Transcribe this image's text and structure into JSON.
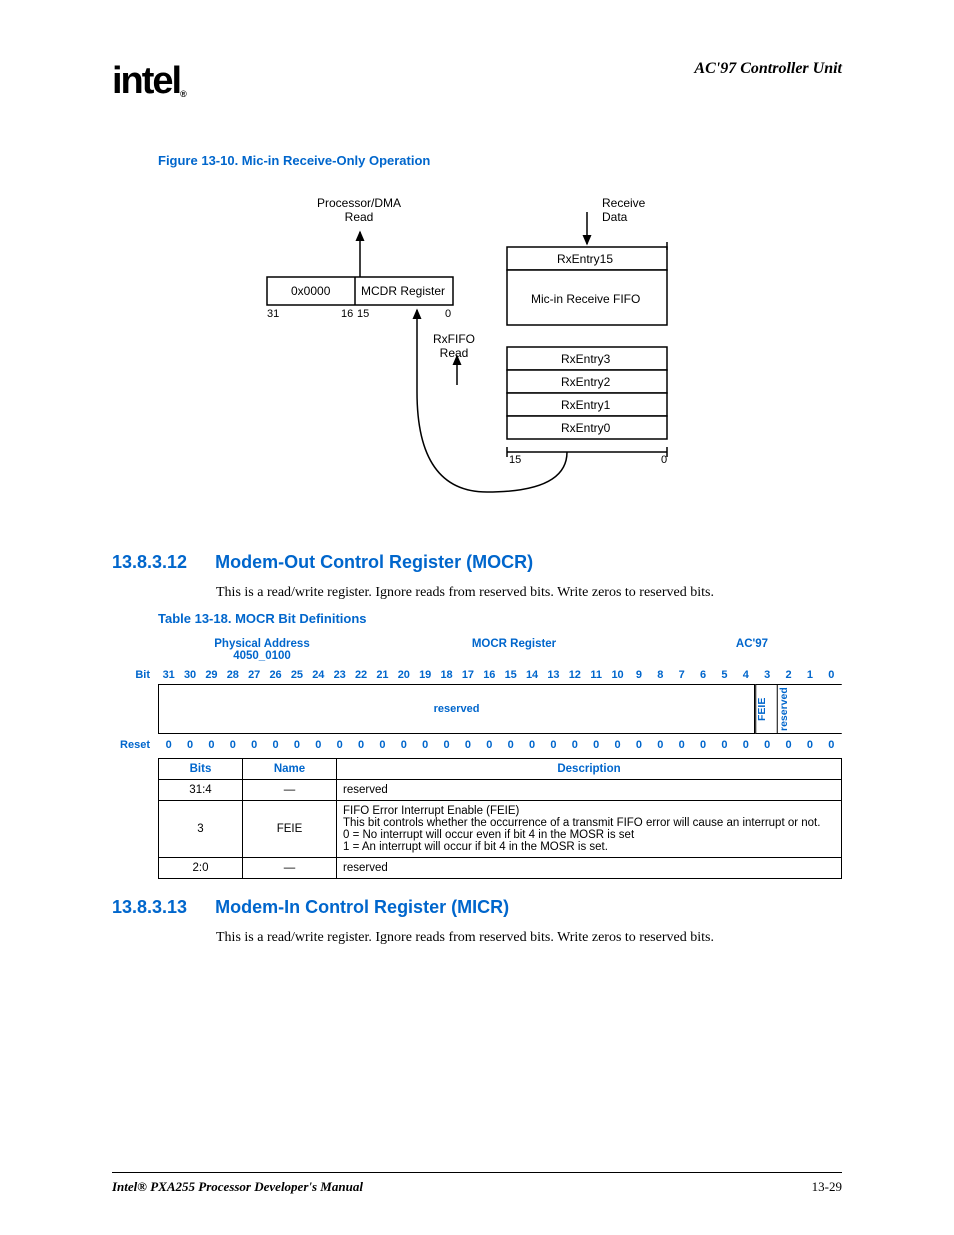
{
  "header": {
    "logo_text": "intel",
    "reg_mark": "®",
    "section_title": "AC'97 Controller Unit"
  },
  "figure": {
    "caption": "Figure 13-10. Mic-in Receive-Only Operation",
    "labels": {
      "proc_dma": "Processor/DMA",
      "read": "Read",
      "receive": "Receive",
      "data": "Data",
      "zero_pad": "0x0000",
      "mcdr": "MCDR Register",
      "bit31": "31",
      "bit16": "16",
      "bit15_a": "15",
      "bit0_a": "0",
      "rxfifo": "RxFIFO",
      "rxfifo_read": "Read",
      "rx15": "RxEntry15",
      "micfifo": "Mic-in Receive FIFO",
      "rx3": "RxEntry3",
      "rx2": "RxEntry2",
      "rx1": "RxEntry1",
      "rx0": "RxEntry0",
      "bit15_b": "15",
      "bit0_b": "0"
    },
    "colors": {
      "stroke": "#000000",
      "fill": "#ffffff"
    }
  },
  "sec1": {
    "num": "13.8.3.12",
    "title": "Modem-Out Control Register (MOCR)",
    "body": "This is a read/write register. Ignore reads from reserved bits. Write zeros to reserved bits."
  },
  "table": {
    "caption": "Table 13-18. MOCR Bit Definitions",
    "phys_addr_label": "Physical Address",
    "phys_addr_val": "4050_0100",
    "reg_name": "MOCR Register",
    "ac97": "AC'97",
    "bit_label": "Bit",
    "reset_label": "Reset",
    "bits": [
      "31",
      "30",
      "29",
      "28",
      "27",
      "26",
      "25",
      "24",
      "23",
      "22",
      "21",
      "20",
      "19",
      "18",
      "17",
      "16",
      "15",
      "14",
      "13",
      "12",
      "11",
      "10",
      "9",
      "8",
      "7",
      "6",
      "5",
      "4",
      "3",
      "2",
      "1",
      "0"
    ],
    "field_reserved": "reserved",
    "field_feie": "FEIE",
    "field_res2": "reserved",
    "reset_vals": [
      "0",
      "0",
      "0",
      "0",
      "0",
      "0",
      "0",
      "0",
      "0",
      "0",
      "0",
      "0",
      "0",
      "0",
      "0",
      "0",
      "0",
      "0",
      "0",
      "0",
      "0",
      "0",
      "0",
      "0",
      "0",
      "0",
      "0",
      "0",
      "0",
      "0",
      "0",
      "0"
    ],
    "col_bits": "Bits",
    "col_name": "Name",
    "col_desc": "Description",
    "rows": [
      {
        "bits": "31:4",
        "name": "—",
        "desc": "reserved"
      },
      {
        "bits": "3",
        "name": "FEIE",
        "desc": "FIFO Error Interrupt Enable (FEIE)\nThis bit controls whether the occurrence of a transmit FIFO error will cause an interrupt or not.\n0 =   No interrupt will occur even if bit 4 in the MOSR is set\n1 =   An interrupt will occur if bit 4 in the MOSR is set."
      },
      {
        "bits": "2:0",
        "name": "—",
        "desc": "reserved"
      }
    ]
  },
  "sec2": {
    "num": "13.8.3.13",
    "title": "Modem-In Control Register (MICR)",
    "body": "This is a read/write register. Ignore reads from reserved bits. Write zeros to reserved bits."
  },
  "footer": {
    "manual": "Intel® PXA255 Processor Developer's Manual",
    "page": "13-29"
  }
}
